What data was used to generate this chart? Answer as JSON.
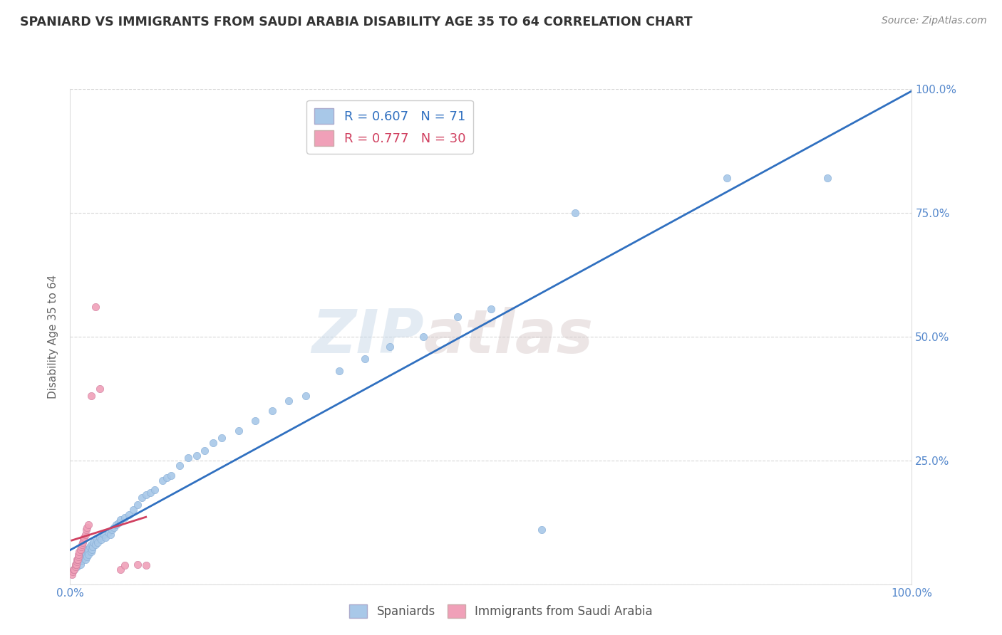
{
  "title": "SPANIARD VS IMMIGRANTS FROM SAUDI ARABIA DISABILITY AGE 35 TO 64 CORRELATION CHART",
  "source": "Source: ZipAtlas.com",
  "ylabel": "Disability Age 35 to 64",
  "xlim": [
    0.0,
    1.0
  ],
  "ylim": [
    0.0,
    1.0
  ],
  "blue_R": "0.607",
  "blue_N": "71",
  "pink_R": "0.777",
  "pink_N": "30",
  "blue_color": "#a8c8e8",
  "pink_color": "#f0a0b8",
  "blue_line_color": "#3070c0",
  "pink_line_color": "#d04060",
  "watermark_zip": "ZIP",
  "watermark_atlas": "atlas",
  "blue_scatter_x": [
    0.005,
    0.007,
    0.008,
    0.01,
    0.01,
    0.012,
    0.013,
    0.014,
    0.015,
    0.015,
    0.016,
    0.017,
    0.018,
    0.018,
    0.019,
    0.02,
    0.021,
    0.022,
    0.022,
    0.023,
    0.025,
    0.025,
    0.026,
    0.027,
    0.028,
    0.03,
    0.032,
    0.033,
    0.035,
    0.037,
    0.04,
    0.042,
    0.045,
    0.048,
    0.05,
    0.052,
    0.055,
    0.058,
    0.06,
    0.065,
    0.07,
    0.075,
    0.08,
    0.085,
    0.09,
    0.095,
    0.1,
    0.11,
    0.115,
    0.12,
    0.13,
    0.14,
    0.15,
    0.16,
    0.17,
    0.18,
    0.2,
    0.22,
    0.24,
    0.26,
    0.28,
    0.32,
    0.35,
    0.38,
    0.42,
    0.46,
    0.5,
    0.56,
    0.6,
    0.78,
    0.9
  ],
  "blue_scatter_y": [
    0.03,
    0.04,
    0.035,
    0.045,
    0.05,
    0.04,
    0.055,
    0.048,
    0.06,
    0.052,
    0.058,
    0.065,
    0.05,
    0.07,
    0.06,
    0.055,
    0.065,
    0.07,
    0.06,
    0.075,
    0.08,
    0.065,
    0.07,
    0.075,
    0.085,
    0.08,
    0.09,
    0.085,
    0.095,
    0.09,
    0.1,
    0.095,
    0.105,
    0.1,
    0.11,
    0.115,
    0.12,
    0.125,
    0.13,
    0.135,
    0.14,
    0.15,
    0.16,
    0.175,
    0.18,
    0.185,
    0.19,
    0.21,
    0.215,
    0.22,
    0.24,
    0.255,
    0.26,
    0.27,
    0.285,
    0.295,
    0.31,
    0.33,
    0.35,
    0.37,
    0.38,
    0.43,
    0.455,
    0.48,
    0.5,
    0.54,
    0.555,
    0.11,
    0.75,
    0.82,
    0.82
  ],
  "pink_scatter_x": [
    0.002,
    0.003,
    0.004,
    0.005,
    0.006,
    0.006,
    0.007,
    0.008,
    0.008,
    0.009,
    0.01,
    0.01,
    0.011,
    0.012,
    0.013,
    0.014,
    0.015,
    0.016,
    0.017,
    0.018,
    0.019,
    0.02,
    0.022,
    0.025,
    0.03,
    0.035,
    0.06,
    0.065,
    0.08,
    0.09
  ],
  "pink_scatter_y": [
    0.02,
    0.025,
    0.03,
    0.03,
    0.035,
    0.04,
    0.04,
    0.045,
    0.05,
    0.05,
    0.055,
    0.06,
    0.065,
    0.07,
    0.075,
    0.08,
    0.085,
    0.09,
    0.095,
    0.1,
    0.11,
    0.115,
    0.12,
    0.38,
    0.56,
    0.395,
    0.03,
    0.038,
    0.04,
    0.038
  ]
}
